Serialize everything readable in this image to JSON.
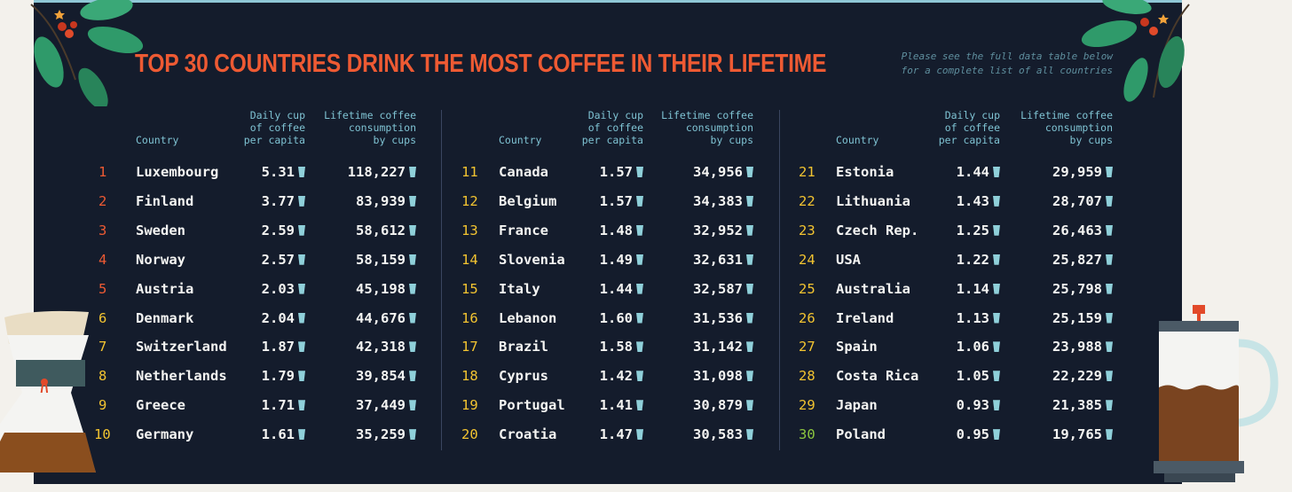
{
  "chart_data": {
    "type": "table",
    "title": "TOP 30 COUNTRIES DRINK THE MOST COFFEE IN THEIR LIFETIME",
    "note": "Please see the full data table below\nfor a complete list of all countries",
    "columns": [
      "Country",
      "Daily cup\nof coffee\nper capita",
      "Lifetime coffee\nconsumption\nby cups"
    ],
    "rows": [
      {
        "rank": "1",
        "country": "Luxembourg",
        "daily": "5.31",
        "lifetime": "118,227"
      },
      {
        "rank": "2",
        "country": "Finland",
        "daily": "3.77",
        "lifetime": "83,939"
      },
      {
        "rank": "3",
        "country": "Sweden",
        "daily": "2.59",
        "lifetime": "58,612"
      },
      {
        "rank": "4",
        "country": "Norway",
        "daily": "2.57",
        "lifetime": "58,159"
      },
      {
        "rank": "5",
        "country": "Austria",
        "daily": "2.03",
        "lifetime": "45,198"
      },
      {
        "rank": "6",
        "country": "Denmark",
        "daily": "2.04",
        "lifetime": "44,676"
      },
      {
        "rank": "7",
        "country": "Switzerland",
        "daily": "1.87",
        "lifetime": "42,318"
      },
      {
        "rank": "8",
        "country": "Netherlands",
        "daily": "1.79",
        "lifetime": "39,854"
      },
      {
        "rank": "9",
        "country": "Greece",
        "daily": "1.71",
        "lifetime": "37,449"
      },
      {
        "rank": "10",
        "country": "Germany",
        "daily": "1.61",
        "lifetime": "35,259"
      },
      {
        "rank": "11",
        "country": "Canada",
        "daily": "1.57",
        "lifetime": "34,956"
      },
      {
        "rank": "12",
        "country": "Belgium",
        "daily": "1.57",
        "lifetime": "34,383"
      },
      {
        "rank": "13",
        "country": "France",
        "daily": "1.48",
        "lifetime": "32,952"
      },
      {
        "rank": "14",
        "country": "Slovenia",
        "daily": "1.49",
        "lifetime": "32,631"
      },
      {
        "rank": "15",
        "country": "Italy",
        "daily": "1.44",
        "lifetime": "32,587"
      },
      {
        "rank": "16",
        "country": "Lebanon",
        "daily": "1.60",
        "lifetime": "31,536"
      },
      {
        "rank": "17",
        "country": "Brazil",
        "daily": "1.58",
        "lifetime": "31,142"
      },
      {
        "rank": "18",
        "country": "Cyprus",
        "daily": "1.42",
        "lifetime": "31,098"
      },
      {
        "rank": "19",
        "country": "Portugal",
        "daily": "1.41",
        "lifetime": "30,879"
      },
      {
        "rank": "20",
        "country": "Croatia",
        "daily": "1.47",
        "lifetime": "30,583"
      },
      {
        "rank": "21",
        "country": "Estonia",
        "daily": "1.44",
        "lifetime": "29,959"
      },
      {
        "rank": "22",
        "country": "Lithuania",
        "daily": "1.43",
        "lifetime": "28,707"
      },
      {
        "rank": "23",
        "country": "Czech Rep.",
        "daily": "1.25",
        "lifetime": "26,463"
      },
      {
        "rank": "24",
        "country": "USA",
        "daily": "1.22",
        "lifetime": "25,827"
      },
      {
        "rank": "25",
        "country": "Australia",
        "daily": "1.14",
        "lifetime": "25,798"
      },
      {
        "rank": "26",
        "country": "Ireland",
        "daily": "1.13",
        "lifetime": "25,159"
      },
      {
        "rank": "27",
        "country": "Spain",
        "daily": "1.06",
        "lifetime": "23,988"
      },
      {
        "rank": "28",
        "country": "Costa Rica",
        "daily": "1.05",
        "lifetime": "22,229"
      },
      {
        "rank": "29",
        "country": "Japan",
        "daily": "0.93",
        "lifetime": "21,385"
      },
      {
        "rank": "30",
        "country": "Poland",
        "daily": "0.95",
        "lifetime": "19,765"
      }
    ],
    "icons": {
      "cup": "coffee-cup-icon",
      "decor_left": "coffee-branch-icon",
      "chemex": "chemex-icon",
      "french_press": "french-press-icon"
    },
    "colors": {
      "title": "#ee5a33",
      "header": "#7fc3d3",
      "text": "#f4f4f2",
      "rank_top": "#ee5a33",
      "rank_mid": "#f3c431",
      "rank_last": "#8cc63f",
      "panel": "#141c2c",
      "cup": "#8fd0da"
    }
  }
}
